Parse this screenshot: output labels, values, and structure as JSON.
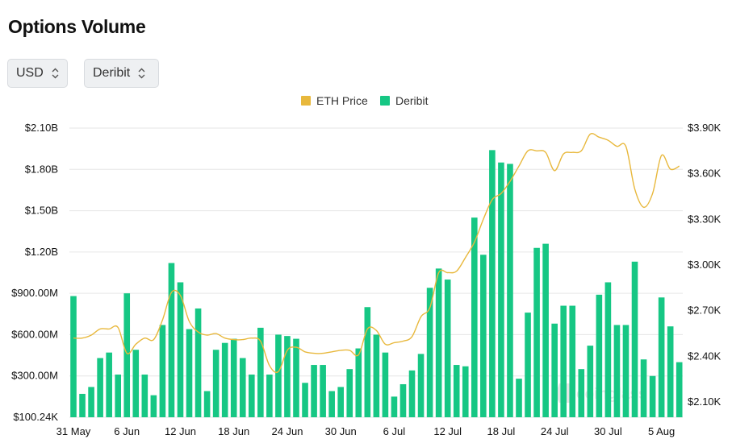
{
  "page": {
    "title": "Options Volume"
  },
  "controls": {
    "currency": {
      "value": "USD"
    },
    "exchange": {
      "value": "Deribit"
    }
  },
  "colors": {
    "bar": "#16c784",
    "price_line": "#e8b83c",
    "grid": "#e6e6e6"
  },
  "watermark": {
    "text": "coinglass",
    "icon": "coinglass-logo-icon"
  },
  "chart_data": {
    "type": "bar",
    "legend": [
      {
        "name": "ETH Price",
        "color": "#e8b83c",
        "kind": "line"
      },
      {
        "name": "Deribit",
        "color": "#16c784",
        "kind": "bar"
      }
    ],
    "legend_position": "top-center",
    "grid": true,
    "x_tick_labels": [
      "31 May",
      "6 Jun",
      "12 Jun",
      "18 Jun",
      "24 Jun",
      "30 Jun",
      "6 Jul",
      "12 Jul",
      "18 Jul",
      "24 Jul",
      "30 Jul",
      "5 Aug"
    ],
    "y_left": {
      "ticks": [
        "$100.24K",
        "$300.00M",
        "$600.00M",
        "$900.00M",
        "$1.20B",
        "$1.50B",
        "$1.80B",
        "$2.10B"
      ],
      "ylim": [
        0.0001,
        2.1
      ],
      "unit": "billion USD"
    },
    "y_right": {
      "ticks": [
        "$2.10K",
        "$2.40K",
        "$2.70K",
        "$3.00K",
        "$3.30K",
        "$3.60K",
        "$3.90K"
      ],
      "ylim": [
        2.0,
        3.9
      ],
      "unit": "thousand USD"
    },
    "series": [
      {
        "name": "Deribit",
        "type": "bar",
        "start_date": "31 May",
        "values": [
          0.88,
          0.17,
          0.22,
          0.43,
          0.47,
          0.31,
          0.9,
          0.49,
          0.31,
          0.16,
          0.67,
          1.12,
          0.98,
          0.64,
          0.79,
          0.19,
          0.49,
          0.54,
          0.57,
          0.43,
          0.31,
          0.65,
          0.31,
          0.6,
          0.59,
          0.57,
          0.25,
          0.38,
          0.38,
          0.19,
          0.22,
          0.35,
          0.5,
          0.8,
          0.6,
          0.47,
          0.15,
          0.24,
          0.34,
          0.46,
          0.94,
          1.08,
          1.0,
          0.38,
          0.37,
          1.45,
          1.18,
          1.94,
          1.85,
          1.84,
          0.28,
          0.76,
          1.23,
          1.26,
          0.68,
          0.81,
          0.81,
          0.35,
          0.52,
          0.89,
          0.98,
          0.67,
          0.67,
          1.13,
          0.42,
          0.3,
          0.87,
          0.66,
          0.4
        ]
      },
      {
        "name": "ETH Price",
        "type": "line",
        "start_date": "31 May",
        "values": [
          2.52,
          2.52,
          2.54,
          2.58,
          2.58,
          2.59,
          2.42,
          2.48,
          2.52,
          2.51,
          2.64,
          2.82,
          2.8,
          2.63,
          2.56,
          2.54,
          2.55,
          2.52,
          2.51,
          2.51,
          2.52,
          2.5,
          2.34,
          2.3,
          2.44,
          2.46,
          2.43,
          2.42,
          2.42,
          2.43,
          2.44,
          2.44,
          2.41,
          2.58,
          2.57,
          2.48,
          2.49,
          2.5,
          2.53,
          2.66,
          2.72,
          2.95,
          2.95,
          2.96,
          3.05,
          3.15,
          3.3,
          3.43,
          3.47,
          3.55,
          3.65,
          3.75,
          3.75,
          3.74,
          3.62,
          3.73,
          3.74,
          3.75,
          3.86,
          3.84,
          3.82,
          3.78,
          3.78,
          3.5,
          3.38,
          3.47,
          3.72,
          3.63,
          3.65
        ]
      }
    ]
  }
}
